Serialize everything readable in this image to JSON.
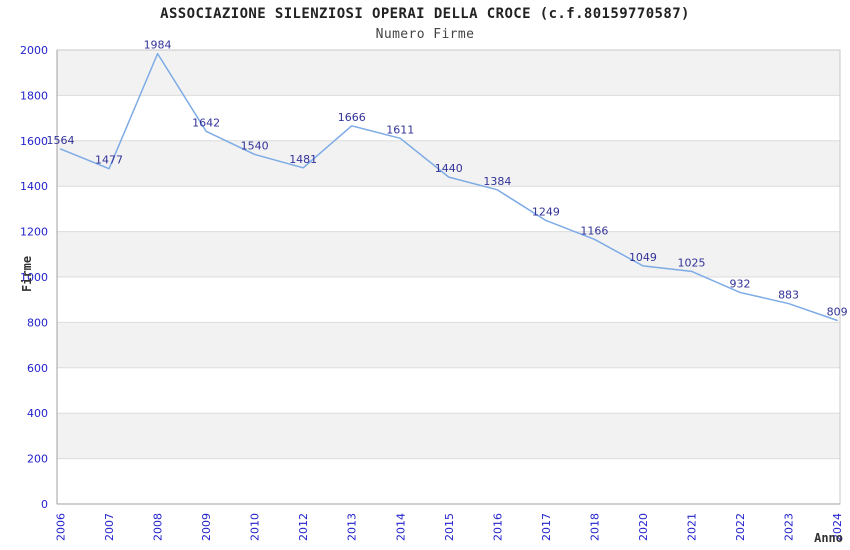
{
  "chart_data": {
    "type": "line",
    "title": "ASSOCIAZIONE SILENZIOSI OPERAI DELLA CROCE (c.f.80159770587)",
    "subtitle": "Numero Firme",
    "xlabel": "Anno",
    "ylabel": "Firme",
    "categories": [
      "2006",
      "2007",
      "2008",
      "2009",
      "2010",
      "2012",
      "2013",
      "2014",
      "2015",
      "2016",
      "2017",
      "2018",
      "2020",
      "2021",
      "2022",
      "2023",
      "2024"
    ],
    "values": [
      1564,
      1477,
      1984,
      1642,
      1540,
      1481,
      1666,
      1611,
      1440,
      1384,
      1249,
      1166,
      1049,
      1025,
      932,
      883,
      809
    ],
    "ylim": [
      0,
      2000
    ],
    "ytick_step": 200,
    "ytick_labels": [
      "0",
      "200",
      "400",
      "600",
      "800",
      "1000",
      "1200",
      "1400",
      "1600",
      "1800",
      "2000"
    ],
    "grid": true,
    "legend": "none",
    "point_labels_shown": true
  },
  "colors": {
    "line": "#7dabe6",
    "point_label": "#333399",
    "tick_label": "#2222cc",
    "title": "#222222",
    "subtitle": "#444444",
    "axis_title": "#333333",
    "band": "#f2f2f2",
    "gridline": "#dcdcdc",
    "plot_border": "#c8c8c8",
    "axis_line": "#a0a0a0",
    "background": "#ffffff"
  }
}
